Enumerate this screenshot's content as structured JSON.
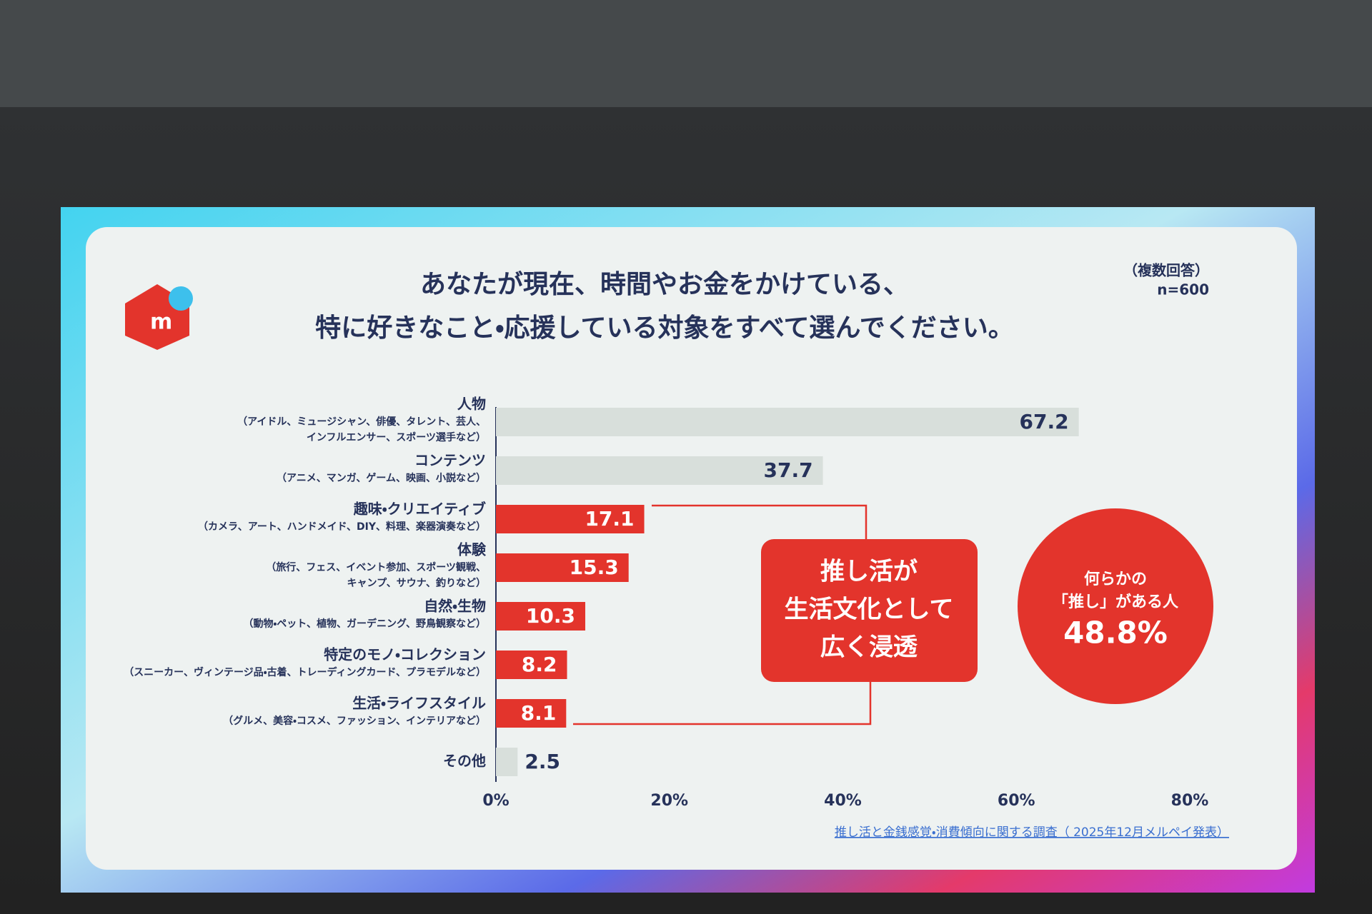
{
  "chart_data": {
    "type": "hbar",
    "title": [
      "あなたが現在、時間やお金をかけている、",
      "特に好きなこと・応援している対象をすべて選んでください。"
    ],
    "note": [
      "（複数回答）",
      "n=600"
    ],
    "categories": [
      "人物",
      "コンテンツ",
      "趣味・クリエイティブ",
      "体験",
      "自然・生物",
      "特定のモノ・コレクション",
      "生活・ライフスタイル",
      "その他"
    ],
    "category_notes": [
      [
        "（アイドル、ミュージシャン、俳優、タレント、芸人、",
        "インフルエンサー、スポーツ選手など）"
      ],
      [
        "（アニメ、マンガ、ゲーム、映画、小説など）"
      ],
      [
        "（カメラ、アート、ハンドメイド、DIY、料理、楽器演奏など）"
      ],
      [
        "（旅行、フェス、イベント参加、スポーツ観戦、",
        "キャンプ、サウナ、釣りなど）"
      ],
      [
        "（動物・ペット、植物、ガーデニング、野鳥観察など）"
      ],
      [
        "（スニーカー、ヴィンテージ品・古着、トレーディングカード、プラモデルなど）"
      ],
      [
        "（グルメ、美容・コスメ、ファッション、インテリアなど）"
      ],
      []
    ],
    "values": [
      67.2,
      37.7,
      17.1,
      15.3,
      10.3,
      8.2,
      8.1,
      2.5
    ],
    "colors": [
      "#d8dfdb",
      "#d8dfdb",
      "#e3342c",
      "#e3342c",
      "#e3342c",
      "#e3342c",
      "#e3342c",
      "#d8dfdb"
    ],
    "xlim": [
      0,
      80
    ],
    "xticks": [
      {
        "value": 0,
        "label": "0%"
      },
      {
        "value": 20,
        "label": "20%"
      },
      {
        "value": 40,
        "label": "40%"
      },
      {
        "value": 60,
        "label": "60%"
      },
      {
        "value": 80,
        "label": "80%"
      }
    ],
    "grid": false,
    "callout": [
      "推し活が",
      "生活文化として",
      "広く浸透"
    ],
    "badge": [
      "何らかの",
      "「推し」がある人",
      "48.8%"
    ],
    "source": "推し活と金銭感覚・消費傾向に関する調査（ 2025年12月メルペイ発表）"
  }
}
